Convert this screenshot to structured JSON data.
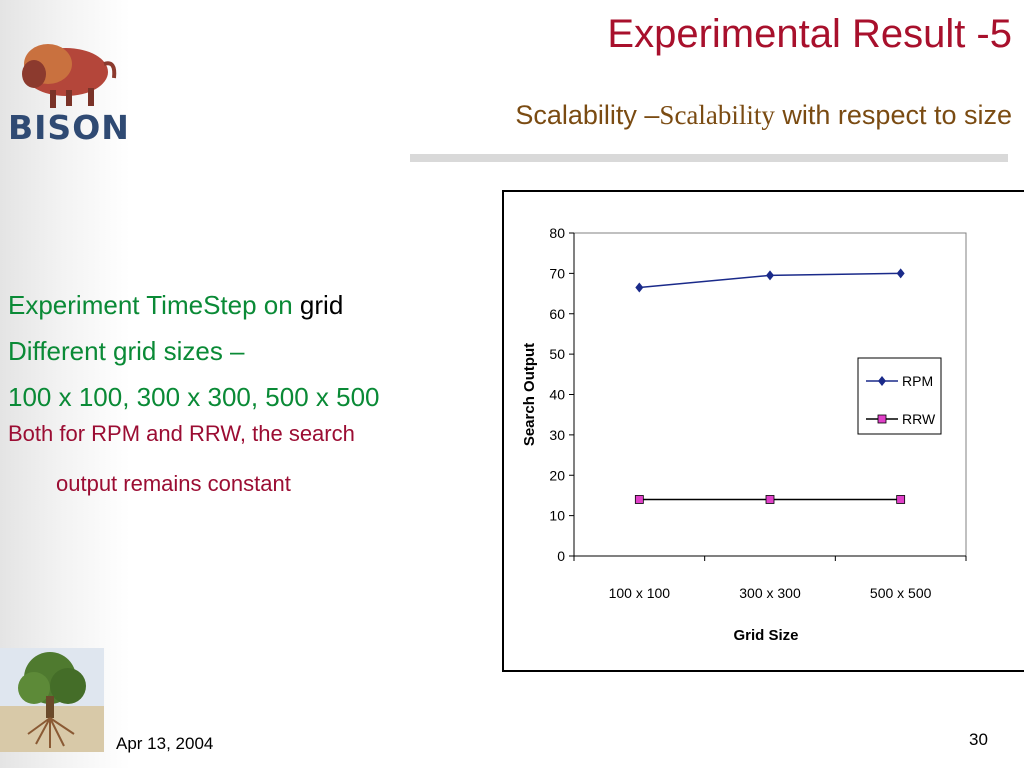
{
  "slide": {
    "title": "Experimental Result -5",
    "subtitle_part1": "Scalability –",
    "subtitle_part2": "Scalability",
    "subtitle_part3": " with respect to size",
    "logo_text": "BISON",
    "bullets": {
      "line1_green": "Experiment TimeStep on ",
      "line1_black": "grid",
      "line2": "Different grid sizes –",
      "line3": "100 x 100, 300 x 300, 500 x 500",
      "line4": "Both for RPM and RRW, the search",
      "line5": "output remains constant"
    },
    "footer_date": "Apr 13, 2004",
    "page_number": "30"
  },
  "colors": {
    "title": "#a8102c",
    "subtitle": "#7a4b12",
    "bullet_green": "#0a8a36",
    "bullet_red": "#9b0d33",
    "rpm_line": "#1a2a8a",
    "rrw_line": "#000000",
    "rrw_marker": "#e040c8"
  },
  "chart_data": {
    "type": "line",
    "categories": [
      "100 x 100",
      "300 x 300",
      "500 x 500"
    ],
    "series": [
      {
        "name": "RPM",
        "values": [
          66.5,
          69.5,
          70
        ],
        "marker": "diamond"
      },
      {
        "name": "RRW",
        "values": [
          14,
          14,
          14
        ],
        "marker": "square"
      }
    ],
    "xlabel": "Grid Size",
    "ylabel": "Search Output",
    "ylim": [
      0,
      80
    ],
    "yticks": [
      "0",
      "10",
      "20",
      "30",
      "40",
      "50",
      "60",
      "70",
      "80"
    ],
    "grid": false,
    "legend_position": "right"
  }
}
